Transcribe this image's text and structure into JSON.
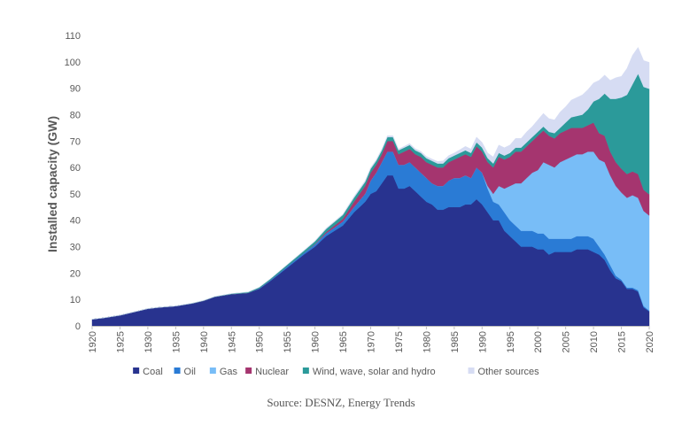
{
  "chart_data": {
    "type": "area",
    "stacked": true,
    "title": "",
    "xlabel": "",
    "ylabel": "Installed capacity (GW)",
    "ylim": [
      0,
      110
    ],
    "yticks": [
      "0",
      "10",
      "20",
      "30",
      "40",
      "50",
      "60",
      "70",
      "80",
      "90",
      "100",
      "110"
    ],
    "xlim": [
      1920,
      2020
    ],
    "xticks": [
      "1920",
      "1925",
      "1930",
      "1935",
      "1940",
      "1945",
      "1950",
      "1955",
      "1960",
      "1965",
      "1970",
      "1975",
      "1980",
      "1985",
      "1990",
      "1995",
      "2000",
      "2005",
      "2010",
      "2015",
      "2020"
    ],
    "grid": false,
    "legend_position": "bottom",
    "x": [
      1920,
      1922,
      1925,
      1928,
      1930,
      1932,
      1935,
      1938,
      1940,
      1942,
      1945,
      1948,
      1950,
      1952,
      1955,
      1958,
      1960,
      1962,
      1965,
      1967,
      1969,
      1970,
      1971,
      1972,
      1973,
      1974,
      1975,
      1976,
      1977,
      1978,
      1979,
      1980,
      1981,
      1982,
      1983,
      1984,
      1985,
      1986,
      1987,
      1988,
      1989,
      1990,
      1991,
      1992,
      1993,
      1994,
      1995,
      1996,
      1997,
      1998,
      1999,
      2000,
      2001,
      2002,
      2003,
      2004,
      2005,
      2006,
      2007,
      2008,
      2009,
      2010,
      2011,
      2012,
      2013,
      2014,
      2015,
      2016,
      2017,
      2018,
      2019,
      2020
    ],
    "series": [
      {
        "name": "Coal",
        "color": "#28338f",
        "values": [
          2.5,
          3,
          4,
          5.5,
          6.5,
          7,
          7.5,
          8.5,
          9.5,
          11,
          12,
          12.5,
          14,
          17,
          22,
          27,
          30,
          34,
          38,
          43,
          47,
          50,
          51,
          54,
          57,
          57,
          52,
          52,
          53,
          51,
          49,
          47,
          46,
          44,
          44,
          45,
          45,
          45,
          46,
          46,
          48,
          46,
          43,
          40,
          40,
          36,
          34,
          32,
          30,
          30,
          30,
          29,
          29,
          27,
          28,
          28,
          28,
          28,
          29,
          29,
          29,
          28,
          27,
          25,
          21,
          18,
          17,
          14,
          14,
          13,
          7,
          5.5
        ]
      },
      {
        "name": "Oil",
        "color": "#2a7bd5",
        "values": [
          0,
          0,
          0,
          0,
          0,
          0,
          0,
          0,
          0,
          0,
          0,
          0,
          0.2,
          0.3,
          0.5,
          0.6,
          0.8,
          1,
          1.5,
          2,
          3,
          5,
          7,
          8,
          9,
          9,
          9,
          9,
          9,
          9,
          9,
          9,
          8,
          9,
          9,
          10,
          11,
          11,
          11,
          10,
          12,
          12,
          9,
          7,
          6,
          7,
          6,
          6,
          6,
          6,
          6,
          6,
          6,
          6,
          5,
          5,
          5,
          5,
          5,
          5,
          5,
          5,
          3,
          2,
          2,
          1,
          0.5,
          0.5,
          0.5,
          0.5,
          0.5,
          0.3
        ]
      },
      {
        "name": "Gas",
        "color": "#78bdf7",
        "values": [
          0,
          0,
          0,
          0,
          0,
          0,
          0,
          0,
          0,
          0,
          0,
          0,
          0,
          0,
          0,
          0,
          0,
          0,
          0,
          0,
          0,
          0,
          0,
          0,
          0,
          0,
          0,
          0,
          0,
          0,
          0,
          0,
          0,
          0,
          0,
          0,
          0,
          0,
          0,
          0,
          0,
          0,
          1,
          3,
          7,
          9,
          13,
          16,
          18,
          20,
          22,
          24,
          27,
          28,
          27,
          29,
          30,
          31,
          31,
          31,
          32,
          33,
          33,
          35,
          34,
          34,
          33,
          34,
          35,
          35,
          36,
          36
        ]
      },
      {
        "name": "Nuclear",
        "color": "#a5356f",
        "values": [
          0,
          0,
          0,
          0,
          0,
          0,
          0,
          0,
          0,
          0,
          0,
          0,
          0,
          0,
          0,
          0,
          0.2,
          0.5,
          1,
          2,
          3,
          3,
          3,
          3,
          4,
          4,
          4,
          5,
          5,
          5,
          6,
          6,
          7,
          7,
          7,
          7,
          7,
          8,
          8,
          8,
          8,
          8,
          9,
          10,
          11,
          11,
          11,
          12,
          12,
          12,
          12,
          13,
          12,
          11,
          11,
          11,
          11,
          11,
          10,
          10,
          10,
          11,
          10,
          10,
          9,
          9,
          9,
          9,
          9,
          9,
          8,
          8
        ]
      },
      {
        "name": "Wind, wave, solar and hydro",
        "color": "#2b9a9a",
        "values": [
          0,
          0,
          0,
          0,
          0,
          0,
          0,
          0.1,
          0.1,
          0.1,
          0.2,
          0.3,
          0.4,
          0.5,
          0.6,
          0.8,
          1,
          1.2,
          1.5,
          1.5,
          1.5,
          1.5,
          1.5,
          1.5,
          1.5,
          1.5,
          1.5,
          1.5,
          1.5,
          1.5,
          1.5,
          1.5,
          1.5,
          1.5,
          1.5,
          1.5,
          1.5,
          1.5,
          1.5,
          1.5,
          1.5,
          1.5,
          1.5,
          1.5,
          1.5,
          1.5,
          1.5,
          1.5,
          1.5,
          1.5,
          1.5,
          1.5,
          1.5,
          1.5,
          2,
          2,
          3,
          4,
          4.5,
          5,
          6,
          8,
          13,
          16,
          20,
          24,
          27,
          30,
          33,
          38,
          39,
          40
        ]
      },
      {
        "name": "Other sources",
        "color": "#d6dcf3",
        "values": [
          0,
          0,
          0,
          0,
          0,
          0,
          0,
          0,
          0,
          0,
          0,
          0,
          0,
          0,
          0.1,
          0.2,
          0.2,
          0.3,
          0.3,
          0.5,
          0.5,
          0.5,
          0.5,
          0.5,
          0.5,
          0.5,
          0.5,
          0.5,
          0.6,
          0.6,
          0.6,
          0.7,
          0.7,
          0.8,
          1,
          1,
          1,
          1.2,
          1.5,
          1.5,
          2,
          2,
          2,
          2.5,
          3,
          3,
          3,
          3.5,
          3.5,
          4,
          4,
          4.5,
          5,
          5,
          5,
          6,
          6,
          6.5,
          7,
          7.5,
          7.5,
          7,
          7,
          7,
          7,
          8,
          8,
          10,
          11,
          10,
          10,
          10
        ]
      }
    ]
  },
  "source": {
    "text": "Source: DESNZ, Energy Trends"
  }
}
